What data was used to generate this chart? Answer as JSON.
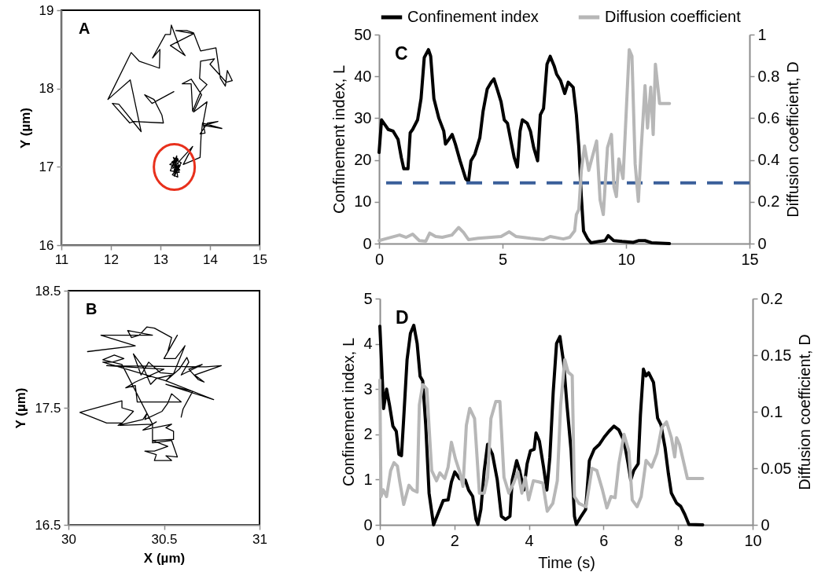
{
  "chart_data": [
    {
      "type": "line",
      "ylabel": "Y (µm)",
      "annotations": [
        "A"
      ],
      "color": "#000000",
      "xlim": [
        11,
        15
      ],
      "xticks": [
        11,
        12,
        13,
        14,
        15
      ],
      "ylim": [
        16,
        19
      ],
      "yticks": [
        16,
        17,
        18,
        19
      ],
      "x": [
        13.27,
        12.83,
        12.68,
        12.87,
        13.03,
        13.06,
        12.46,
        12.38,
        12.03,
        12.16,
        12.61,
        12.39,
        11.94,
        12.41,
        12.57,
        12.98,
        12.99,
        12.84,
        13.1,
        13.2,
        13.22,
        13.39,
        13.5,
        13.2,
        13.67,
        13.31,
        13.53,
        13.67,
        13.81,
        14.12,
        14.21,
        14.31,
        14.35,
        14.45,
        14.33,
        14.0,
        14.09,
        13.81,
        13.79,
        13.94,
        13.81,
        13.65,
        13.62,
        13.44,
        13.62,
        13.83,
        13.67,
        13.94,
        13.86,
        13.9,
        13.8,
        13.95,
        14.16,
        13.88,
        14.24,
        13.85,
        13.82,
        13.8,
        13.46,
        13.65,
        13.25,
        13.36,
        13.22,
        13.4,
        13.28,
        13.33,
        13.2,
        13.38,
        13.26,
        13.42,
        13.24,
        13.35,
        13.3,
        13.19,
        13.37,
        13.27,
        13.34,
        13.23,
        13.39,
        13.29,
        13.31,
        13.36
      ],
      "values": [
        17.96,
        17.81,
        17.92,
        17.86,
        17.66,
        17.56,
        17.58,
        17.56,
        17.81,
        17.8,
        17.45,
        18.11,
        17.86,
        18.46,
        18.35,
        18.26,
        18.5,
        18.39,
        18.69,
        18.69,
        18.81,
        18.52,
        18.42,
        18.55,
        18.7,
        18.74,
        18.74,
        18.71,
        18.48,
        18.52,
        18.13,
        18.03,
        18.23,
        18.1,
        18.08,
        18.31,
        18.38,
        18.35,
        18.13,
        18.05,
        17.96,
        17.71,
        18.06,
        18.06,
        18.12,
        17.92,
        17.7,
        17.83,
        17.56,
        17.43,
        17.42,
        17.56,
        17.58,
        17.53,
        17.49,
        17.56,
        17.39,
        17.12,
        17.03,
        17.26,
        16.98,
        17.1,
        17.0,
        17.02,
        16.88,
        17.14,
        16.95,
        16.93,
        17.12,
        17.05,
        16.9,
        16.87,
        17.08,
        17.03,
        17.0,
        16.94,
        17.11,
        17.06,
        16.96,
        16.99,
        16.92,
        17.04
      ]
    },
    {
      "type": "line",
      "xlabel": "X (µm)",
      "ylabel": "Y (µm)",
      "annotations": [
        "B"
      ],
      "color": "#000000",
      "xlim": [
        30,
        31
      ],
      "xticks": [
        30,
        30.5,
        31
      ],
      "ylim": [
        16.5,
        18.5
      ],
      "yticks": [
        16.5,
        17.5,
        18.5
      ],
      "x": [
        30.1,
        30.35,
        30.17,
        30.44,
        30.31,
        30.33,
        30.37,
        30.41,
        30.45,
        30.54,
        30.52,
        30.57,
        30.5,
        30.56,
        30.61,
        30.55,
        30.48,
        30.42,
        30.38,
        30.34,
        30.39,
        30.43,
        30.46,
        30.54,
        30.51,
        30.58,
        30.62,
        30.63,
        30.59,
        30.7,
        30.63,
        30.68,
        30.71,
        30.66,
        30.8,
        30.72,
        30.2,
        30.5,
        30.35,
        30.3,
        30.35,
        30.36,
        30.59,
        30.54,
        30.52,
        30.49,
        30.4,
        30.41,
        30.39,
        30.26,
        30.28,
        30.2,
        30.06,
        30.28,
        30.28,
        30.34,
        30.27,
        30.44,
        30.46,
        30.39,
        30.54,
        30.51,
        30.55,
        30.55,
        30.44,
        30.52,
        30.45,
        30.4,
        30.46,
        30.45,
        30.54,
        30.51,
        30.57,
        30.54,
        30.44,
        30.44,
        30.28,
        30.18,
        30.24,
        30.29,
        30.23,
        30.18,
        30.51,
        30.76,
        30.51,
        30.65,
        30.6,
        30.59
      ],
      "values": [
        17.98,
        18.03,
        18.12,
        18.12,
        18.16,
        18.1,
        18.12,
        18.19,
        18.18,
        18.1,
        17.98,
        18.12,
        17.92,
        17.92,
        18.03,
        17.79,
        17.8,
        17.89,
        17.78,
        17.96,
        17.85,
        17.7,
        17.75,
        17.78,
        17.73,
        17.83,
        17.93,
        17.89,
        17.78,
        17.87,
        17.83,
        17.74,
        17.72,
        17.78,
        17.86,
        17.85,
        17.86,
        17.83,
        17.72,
        17.67,
        17.69,
        17.55,
        17.55,
        17.62,
        17.54,
        17.47,
        17.4,
        17.45,
        17.4,
        17.35,
        17.37,
        17.37,
        17.46,
        17.56,
        17.5,
        17.47,
        17.35,
        17.36,
        17.38,
        17.31,
        17.36,
        17.33,
        17.3,
        17.23,
        17.22,
        17.17,
        17.13,
        17.13,
        17.1,
        17.05,
        17.05,
        17.09,
        17.08,
        17.22,
        17.2,
        17.36,
        17.87,
        17.91,
        17.95,
        17.92,
        17.89,
        17.89,
        17.73,
        17.57,
        17.7,
        17.64,
        17.49,
        17.42
      ]
    },
    {
      "type": "line",
      "ylabel": "Confinement index, L",
      "y2label": "Diffusion coefficient, D",
      "annotations": [
        "C"
      ],
      "legend": "top",
      "xlim": [
        0,
        15
      ],
      "xticks": [
        0,
        5,
        10,
        15
      ],
      "ylim": [
        0,
        50
      ],
      "yticks": [
        0,
        10,
        20,
        30,
        40,
        50
      ],
      "y2lim": [
        0,
        1
      ],
      "y2ticks": [
        0,
        0.2,
        0.4,
        0.6,
        0.8,
        1
      ],
      "ref_lines": [
        {
          "axis": "y",
          "value": 14.5,
          "color": "#3a5f9a",
          "line_style": "dashed"
        }
      ],
      "series": [
        {
          "name": "Confinement index",
          "color": "#000000",
          "x": [
            0,
            0.1,
            0.24,
            0.37,
            0.57,
            0.77,
            0.9,
            1.0,
            1.17,
            1.26,
            1.36,
            1.56,
            1.7,
            1.83,
            2.0,
            2.09,
            2.22,
            2.42,
            2.62,
            2.69,
            2.82,
            2.96,
            3.09,
            3.28,
            3.51,
            3.62,
            3.72,
            3.88,
            4.08,
            4.21,
            4.38,
            4.54,
            4.65,
            4.78,
            4.94,
            5.07,
            5.2,
            5.34,
            5.47,
            5.6,
            5.71,
            5.8,
            6.0,
            6.13,
            6.26,
            6.42,
            6.53,
            6.66,
            6.8,
            6.93,
            7.09,
            7.19,
            7.35,
            7.52,
            7.66,
            7.86,
            7.99,
            8.09,
            8.19,
            8.28,
            8.45,
            8.58,
            8.91,
            9.15,
            9.28,
            9.5,
            9.84,
            10.3,
            10.5,
            10.77,
            11.03,
            11.76
          ],
          "values": [
            21.8,
            29.6,
            28.4,
            27.3,
            26.9,
            24.9,
            20.6,
            17.9,
            17.9,
            26.5,
            27.3,
            29.6,
            34.7,
            44.5,
            46.4,
            44.8,
            34.7,
            30,
            26.9,
            23.8,
            24.9,
            26.1,
            23.8,
            19.8,
            15.5,
            14.8,
            19.8,
            21.4,
            25.3,
            31.6,
            37,
            38.6,
            39.4,
            37,
            33.9,
            29.6,
            28.8,
            24.5,
            20.6,
            18.3,
            26.9,
            29.6,
            28.8,
            26.9,
            23,
            19.8,
            30.8,
            32.3,
            42.9,
            44.8,
            42.5,
            40.5,
            39,
            35.9,
            38.6,
            37.4,
            30.8,
            23,
            11.3,
            3,
            1.1,
            0.2,
            0.5,
            0.7,
            1.9,
            0.7,
            0.5,
            0.3,
            0.7,
            0.7,
            0.2,
            0
          ]
        },
        {
          "name": "Diffusion coefficient",
          "color": "#b7b7b7",
          "axis": "y2",
          "x": [
            0,
            0.24,
            0.83,
            1.1,
            1.36,
            1.63,
            1.89,
            2.05,
            2.29,
            2.56,
            2.95,
            3.22,
            3.42,
            3.62,
            4.01,
            4.54,
            4.94,
            5.27,
            5.54,
            6.13,
            6.66,
            6.93,
            7.46,
            7.72,
            7.92,
            7.99,
            8.09,
            8.19,
            8.32,
            8.49,
            8.63,
            8.81,
            8.95,
            9.08,
            9.25,
            9.41,
            9.51,
            9.61,
            9.71,
            9.88,
            10.04,
            10.13,
            10.24,
            10.37,
            10.5,
            10.61,
            10.77,
            10.87,
            11.0,
            11.1,
            11.19,
            11.29,
            11.36,
            11.76
          ],
          "values": [
            0.014,
            0.022,
            0.041,
            0.03,
            0.045,
            0.014,
            0.011,
            0.05,
            0.034,
            0.03,
            0.041,
            0.077,
            0.053,
            0.019,
            0.025,
            0.03,
            0.034,
            0.056,
            0.034,
            0.025,
            0.019,
            0.034,
            0.022,
            0.03,
            0.061,
            0.139,
            0.163,
            0.35,
            0.467,
            0.35,
            0.413,
            0.491,
            0.209,
            0.139,
            0.459,
            0.522,
            0.272,
            0.225,
            0.405,
            0.311,
            0.709,
            0.928,
            0.897,
            0.381,
            0.202,
            0.444,
            0.756,
            0.553,
            0.748,
            0.522,
            0.858,
            0.748,
            0.67,
            0.67
          ]
        }
      ]
    },
    {
      "type": "line",
      "xlabel": "Time (s)",
      "ylabel": "Confinement index, L",
      "y2label": "Diffusion coefficient, D",
      "annotations": [
        "D"
      ],
      "xlim": [
        0,
        10
      ],
      "xticks": [
        0,
        2,
        4,
        6,
        8,
        10
      ],
      "ylim": [
        0,
        5
      ],
      "yticks": [
        0,
        1,
        2,
        3,
        4,
        5
      ],
      "y2lim": [
        0,
        0.2
      ],
      "y2ticks": [
        0,
        0.05,
        0.1,
        0.15,
        0.2
      ],
      "series": [
        {
          "color": "#000000",
          "x": [
            0,
            0.05,
            0.1,
            0.18,
            0.26,
            0.35,
            0.44,
            0.51,
            0.58,
            0.64,
            0.73,
            0.82,
            0.91,
            1.0,
            1.08,
            1.15,
            1.23,
            1.32,
            1.44,
            1.57,
            1.7,
            1.83,
            1.92,
            2.01,
            2.14,
            2.29,
            2.38,
            2.49,
            2.58,
            2.63,
            2.71,
            2.8,
            2.89,
            3.02,
            3.15,
            3.26,
            3.37,
            3.49,
            3.55,
            3.67,
            3.75,
            3.86,
            3.95,
            4.04,
            4.14,
            4.19,
            4.28,
            4.39,
            4.48,
            4.56,
            4.65,
            4.74,
            4.83,
            4.93,
            5.02,
            5.13,
            5.22,
            5.27,
            5.4,
            5.52,
            5.62,
            5.75,
            5.89,
            6.02,
            6.15,
            6.28,
            6.41,
            6.55,
            6.66,
            6.73,
            6.81,
            6.93,
            6.99,
            7.07,
            7.14,
            7.21,
            7.34,
            7.45,
            7.54,
            7.65,
            7.74,
            7.82,
            7.96,
            8.07,
            8.18,
            8.29,
            8.66
          ],
          "values": [
            4.39,
            3.51,
            2.57,
            3.0,
            2.64,
            2.18,
            2.07,
            1.56,
            1.53,
            2.36,
            3.65,
            4.23,
            4.41,
            4.01,
            3.28,
            3.18,
            2.21,
            0.7,
            0,
            0.27,
            0.54,
            0.55,
            0.95,
            1.17,
            1.02,
            0.99,
            0.77,
            0.63,
            0.12,
            0.01,
            0.34,
            1.2,
            1.78,
            1.56,
            0.99,
            0.19,
            0.12,
            0.19,
            0.99,
            1.42,
            1.2,
            0.77,
            1.35,
            1.64,
            1.67,
            2.03,
            1.85,
            1.28,
            0.77,
            1.49,
            2.93,
            4.01,
            4.16,
            3.58,
            2.64,
            1.64,
            0.19,
            0.01,
            0.19,
            0.34,
            1.42,
            1.67,
            1.78,
            1.94,
            2.07,
            2.18,
            2.1,
            1.85,
            1.35,
            0.99,
            1.2,
            1.35,
            2.43,
            3.44,
            3.29,
            3.36,
            3.15,
            2.36,
            2.21,
            1.71,
            1.13,
            0.7,
            0.48,
            0.41,
            0.23,
            0.01,
            0
          ]
        },
        {
          "color": "#b7b7b7",
          "axis": "y2",
          "x": [
            0,
            0.03,
            0.09,
            0.18,
            0.29,
            0.38,
            0.47,
            0.53,
            0.64,
            0.78,
            0.88,
            1.0,
            1.06,
            1.15,
            1.26,
            1.39,
            1.52,
            1.61,
            1.74,
            1.83,
            1.92,
            2.03,
            2.14,
            2.23,
            2.32,
            2.41,
            2.54,
            2.67,
            2.8,
            2.89,
            2.98,
            3.11,
            3.22,
            3.33,
            3.46,
            3.59,
            3.7,
            3.81,
            3.9,
            3.99,
            4.12,
            4.26,
            4.37,
            4.49,
            4.64,
            4.76,
            4.85,
            4.96,
            5.05,
            5.16,
            5.22,
            5.34,
            5.53,
            5.69,
            5.82,
            5.97,
            6.09,
            6.2,
            6.31,
            6.41,
            6.55,
            6.68,
            6.77,
            6.9,
            7.01,
            7.14,
            7.29,
            7.43,
            7.56,
            7.69,
            7.82,
            7.91,
            7.96,
            8.04,
            8.25,
            8.66
          ],
          "values": [
            0.128,
            0.025,
            0.031,
            0.025,
            0.048,
            0.055,
            0.052,
            0.039,
            0.018,
            0.035,
            0.031,
            0.029,
            0.106,
            0.124,
            0.12,
            0.048,
            0.039,
            0.046,
            0.041,
            0.051,
            0.073,
            0.058,
            0.047,
            0.034,
            0.088,
            0.103,
            0.094,
            0.028,
            0.028,
            0.042,
            0.094,
            0.109,
            0.109,
            0.042,
            0.028,
            0.037,
            0.047,
            0.028,
            0.042,
            0.022,
            0.039,
            0.038,
            0.037,
            0.012,
            0.019,
            0.039,
            0.106,
            0.146,
            0.135,
            0.132,
            0.025,
            0.019,
            0.016,
            0.05,
            0.048,
            0.031,
            0.015,
            0.025,
            0.024,
            0.054,
            0.08,
            0.065,
            0.022,
            0.016,
            0.025,
            0.057,
            0.051,
            0.063,
            0.086,
            0.091,
            0.077,
            0.06,
            0.077,
            0.071,
            0.041,
            0.041
          ]
        }
      ]
    }
  ]
}
